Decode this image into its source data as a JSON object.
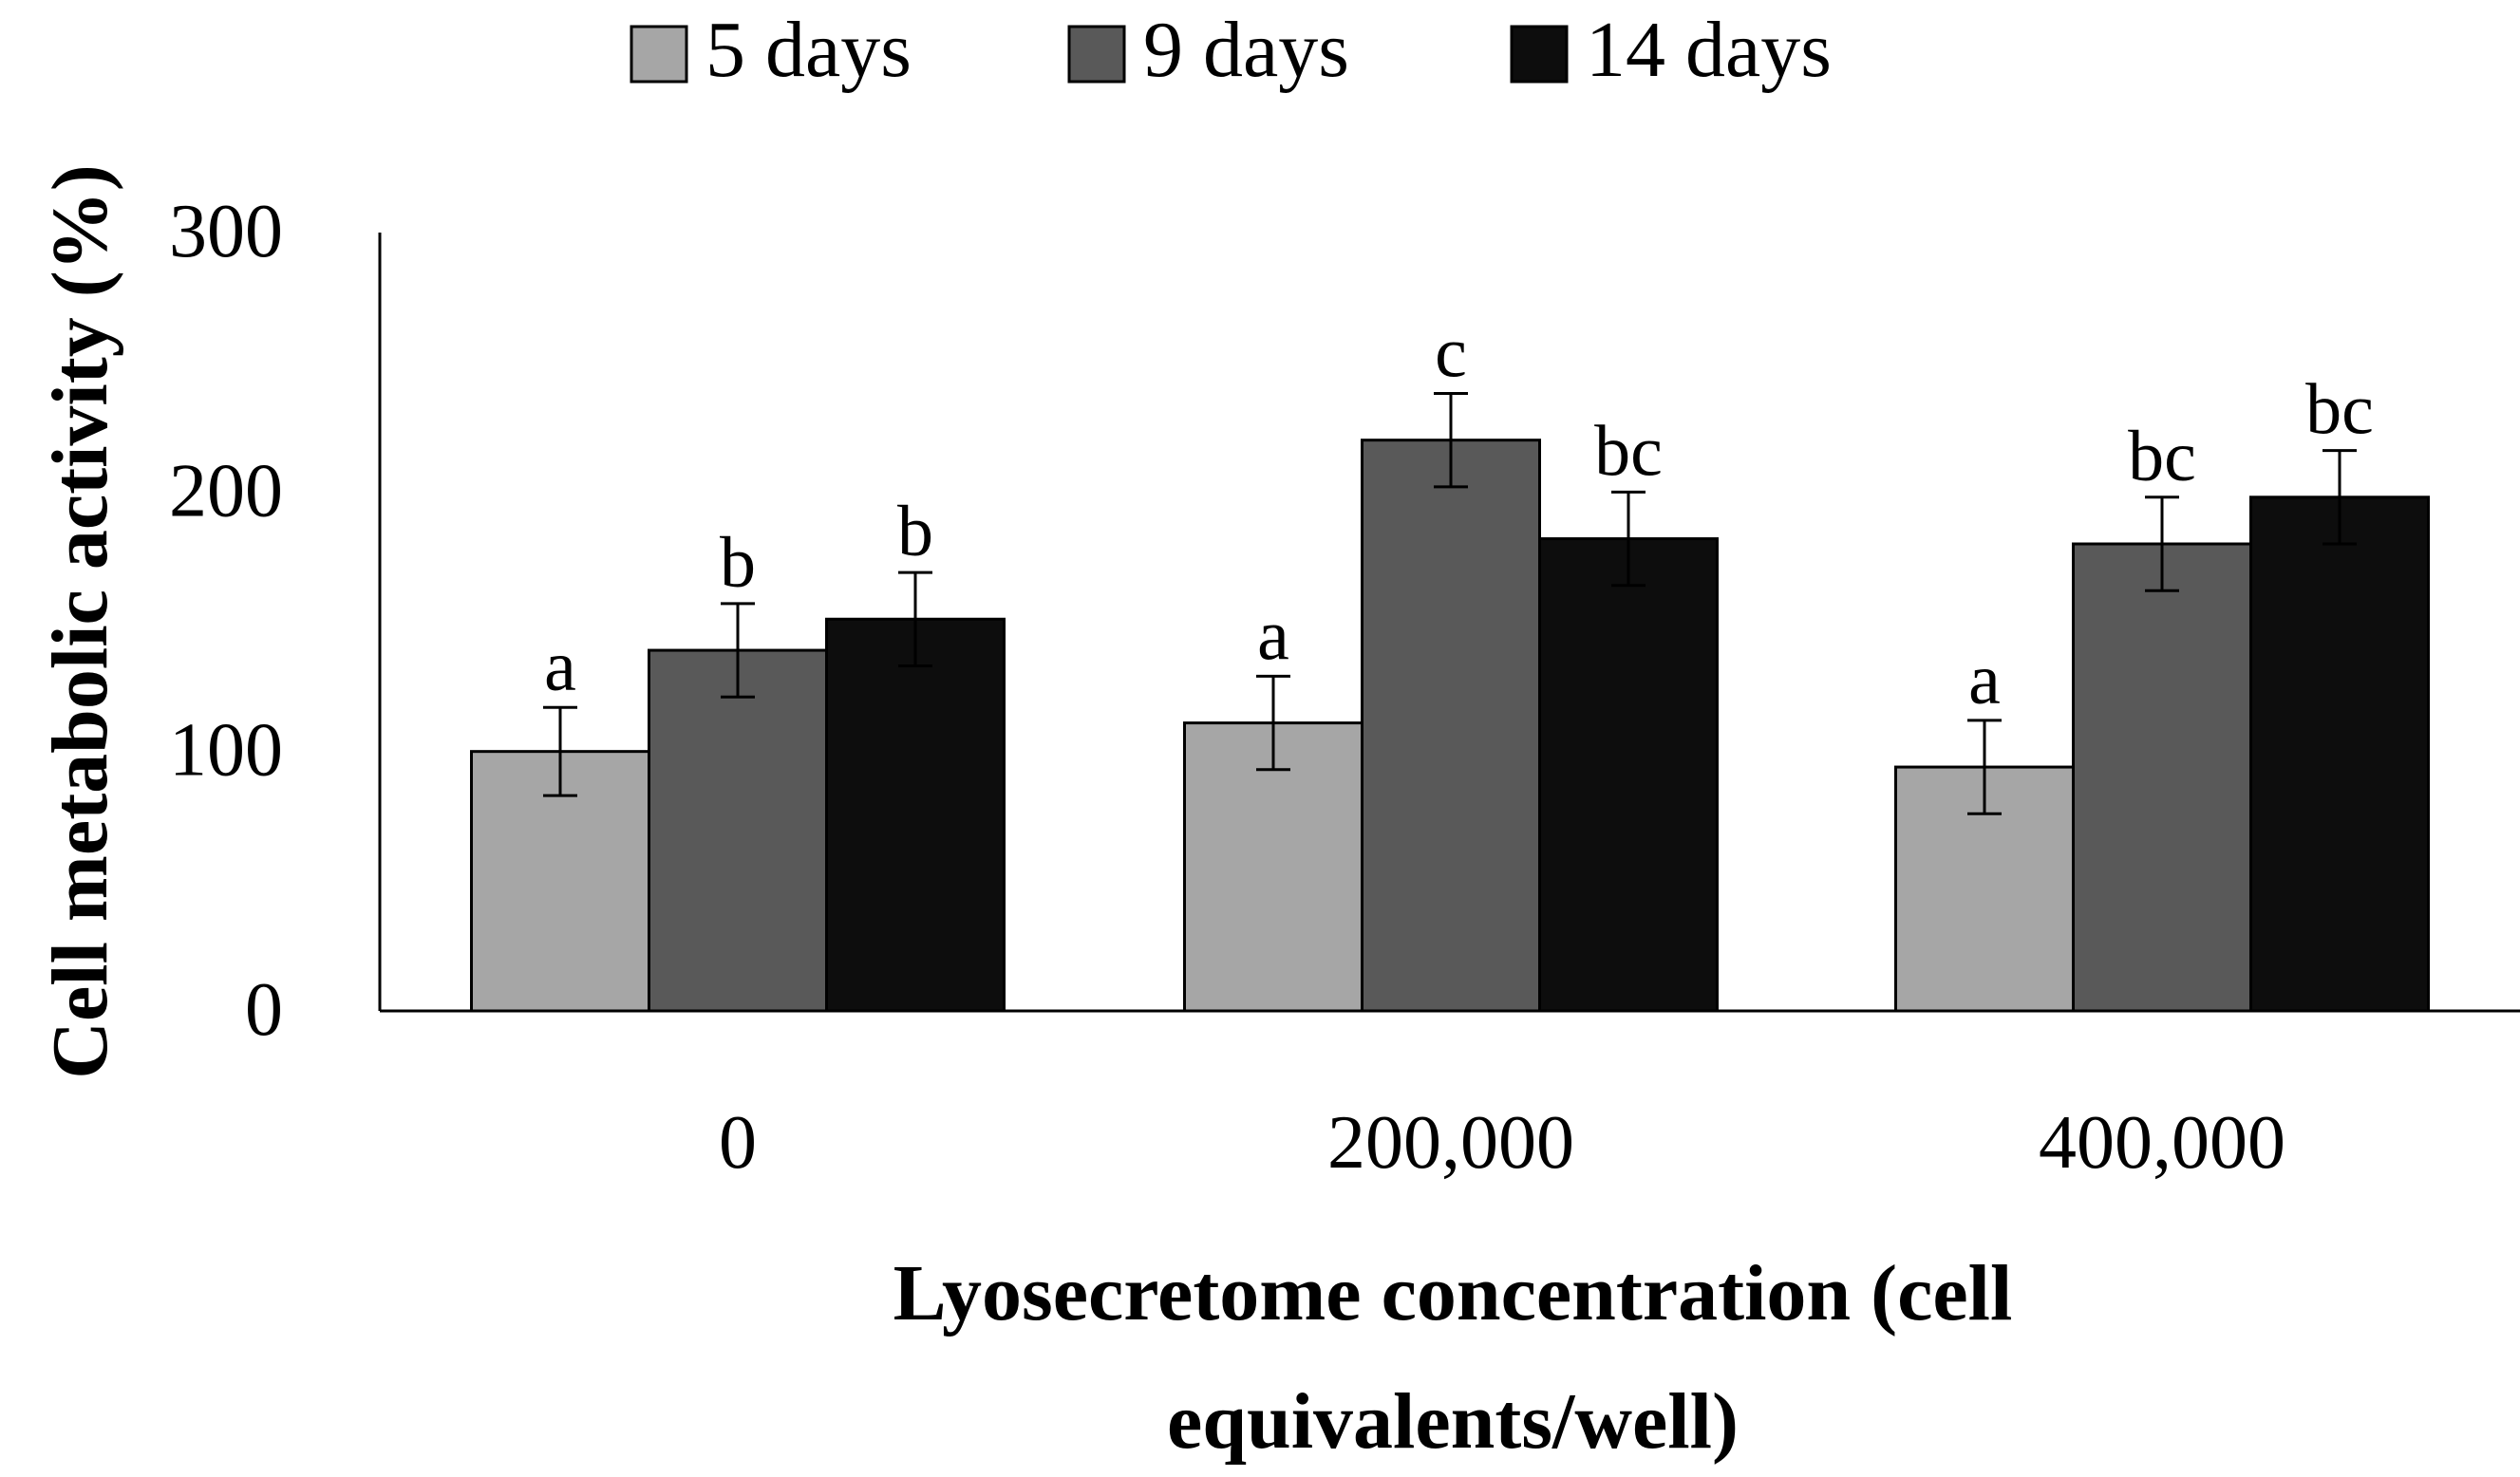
{
  "chart_data": {
    "type": "bar",
    "title": "",
    "xlabel": "Lyosecretome concentration (cell equivalents/well)",
    "xlabel_lines": [
      "Lyosecretome concentration (cell",
      "equivalents/well)"
    ],
    "ylabel": "Cell metabolic activity (%)",
    "ylim": [
      0,
      300
    ],
    "yticks": [
      "0",
      "100",
      "200",
      "300"
    ],
    "ytick_values": [
      0,
      100,
      200,
      300
    ],
    "grid": false,
    "legend_position": "top",
    "categories": [
      "0",
      "200,000",
      "400,000"
    ],
    "series": [
      {
        "name": "5 days",
        "color": "#a6a6a6",
        "values": [
          100,
          111,
          94
        ],
        "errors": [
          17,
          18,
          18
        ],
        "labels": [
          "a",
          "a",
          "a"
        ]
      },
      {
        "name": "9 days",
        "color": "#595959",
        "values": [
          139,
          220,
          180
        ],
        "errors": [
          18,
          18,
          18
        ],
        "labels": [
          "b",
          "c",
          "bc"
        ]
      },
      {
        "name": "14 days",
        "color": "#0d0d0d",
        "values": [
          151,
          182,
          198
        ],
        "errors": [
          18,
          18,
          18
        ],
        "labels": [
          "b",
          "bc",
          "bc"
        ]
      }
    ]
  }
}
